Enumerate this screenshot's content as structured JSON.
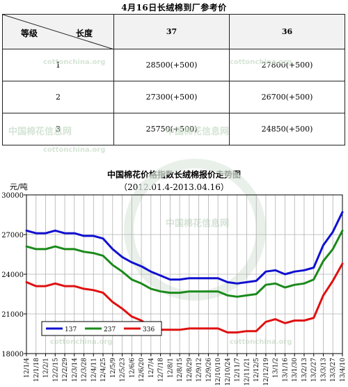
{
  "table": {
    "title": "4月16日长绒棉到厂参考价",
    "corner_row_label": "等级",
    "corner_col_label": "长度",
    "columns": [
      "37",
      "36"
    ],
    "rows": [
      {
        "grade": "1",
        "values": [
          "28500(+500)",
          "27800(+500)"
        ]
      },
      {
        "grade": "2",
        "values": [
          "27300(+500)",
          "26700(+500)"
        ]
      },
      {
        "grade": "3",
        "values": [
          "25750(+500)",
          "24850(+500)"
        ]
      }
    ]
  },
  "watermarks": {
    "cn": "中国棉花信息网",
    "url": "cottonchina.org"
  },
  "chart_data": {
    "type": "line",
    "title": "中国棉花价格指数长绒棉报价走势图",
    "subtitle": "（2012.01.4-2013.04.16）",
    "ylabel": "元/吨",
    "ylim": [
      18000,
      30000
    ],
    "yticks": [
      18000,
      21000,
      24000,
      27000,
      30000
    ],
    "grid": true,
    "legend_position": "bottom-left",
    "x": [
      "12/1/4",
      "12/1/18",
      "12/2/1",
      "12/2/15",
      "12/2/29",
      "12/3/14",
      "12/3/28",
      "12/4/11",
      "12/4/25",
      "12/5/9",
      "12/5/23",
      "12/6/6",
      "12/6/20",
      "12/7/4",
      "12/7/18",
      "12/8/1",
      "12/8/15",
      "12/8/29",
      "12/9/12",
      "12/9/26",
      "12/10/10",
      "12/10/24",
      "12/11/7",
      "12/11/21",
      "12/12/5",
      "12/12/19",
      "13/1/2",
      "13/1/16",
      "13/1/30",
      "13/2/13",
      "13/2/27",
      "13/3/13",
      "13/3/27",
      "13/4/10"
    ],
    "series": [
      {
        "name": "137",
        "color": "#1010d0",
        "values": [
          27300,
          27100,
          27100,
          27300,
          27100,
          27100,
          26900,
          26900,
          26700,
          25900,
          25300,
          24900,
          24600,
          24200,
          23900,
          23600,
          23600,
          23700,
          23700,
          23700,
          23700,
          23400,
          23300,
          23400,
          23500,
          24200,
          24300,
          24000,
          24200,
          24300,
          24500,
          26200,
          27200,
          28700
        ]
      },
      {
        "name": "237",
        "color": "#1a8a1a",
        "values": [
          26100,
          25900,
          25900,
          26100,
          25900,
          25900,
          25700,
          25600,
          25400,
          24700,
          24200,
          23600,
          23300,
          22900,
          22700,
          22600,
          22600,
          22700,
          22700,
          22700,
          22700,
          22400,
          22300,
          22400,
          22500,
          23200,
          23300,
          23000,
          23200,
          23300,
          23600,
          25000,
          25900,
          27300
        ]
      },
      {
        "name": "336",
        "color": "#e01010",
        "values": [
          23400,
          23100,
          23100,
          23300,
          23100,
          23100,
          22900,
          22800,
          22600,
          21900,
          21400,
          20800,
          20500,
          20000,
          19800,
          19800,
          19800,
          19900,
          19900,
          19900,
          19900,
          19600,
          19600,
          19700,
          19700,
          20400,
          20600,
          20300,
          20500,
          20500,
          20700,
          22400,
          23500,
          24800
        ]
      }
    ]
  }
}
